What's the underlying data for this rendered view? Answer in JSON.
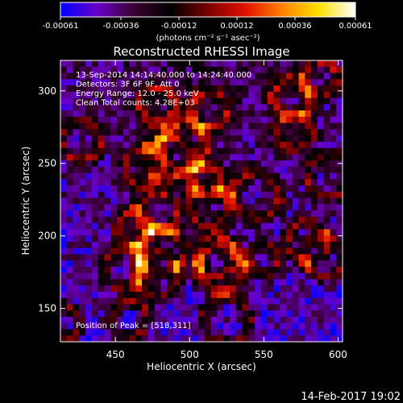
{
  "colorbar": {
    "tick_labels": [
      "-0.00061",
      "-0.00036",
      "-0.00012",
      "0.00012",
      "0.00036",
      "0.00061"
    ],
    "tick_values": [
      -0.00061,
      -0.00036,
      -0.00012,
      0.00012,
      0.00036,
      0.00061
    ],
    "range": [
      -0.00061,
      0.00061
    ],
    "units_label": "(photons cm⁻² s⁻¹ asec⁻²)",
    "colormap": [
      "#0000ff",
      "#6a00c8",
      "#3a0030",
      "#000000",
      "#7a0000",
      "#e01000",
      "#ff8000",
      "#ffe000",
      "#ffffff"
    ]
  },
  "chart_data": {
    "type": "heatmap",
    "title": "Reconstructed RHESSI Image",
    "xlabel": "Heliocentric X (arcsec)",
    "ylabel": "Heliocentric Y (arcsec)",
    "xlim": [
      413,
      603
    ],
    "ylim": [
      127,
      321
    ],
    "x_ticks": [
      450,
      500,
      550,
      600
    ],
    "y_ticks": [
      150,
      200,
      250,
      300
    ],
    "info_lines": [
      "13-Sep-2014 14:14:40.000 to 14:24:40.000",
      "Detectors: 3F 6F 9F, Att 0",
      "Energy Range: 12.0 - 25.0 keV",
      "Clean     Total counts: 4.28E+03"
    ],
    "peak_label": "Position of Peak = [518,311]",
    "peak_position": [
      518,
      311
    ],
    "grid": false,
    "legend": "none"
  },
  "footer": {
    "timestamp": "14-Feb-2017 19:02"
  }
}
